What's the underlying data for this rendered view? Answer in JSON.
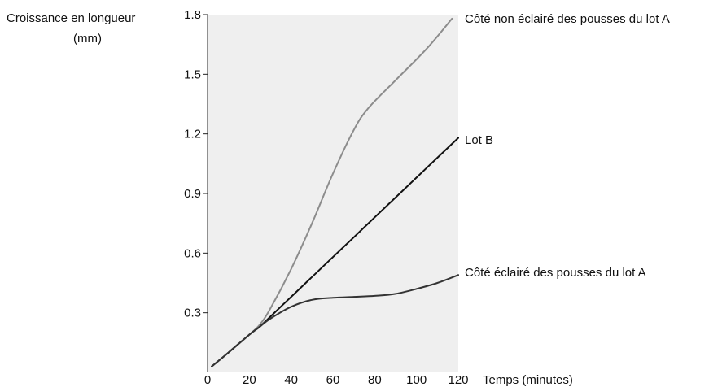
{
  "chart_data": {
    "type": "line",
    "ylabel_lines": [
      "Croissance en longueur",
      "(mm)"
    ],
    "xlabel": "Temps (minutes)",
    "xlim": [
      0,
      120
    ],
    "ylim": [
      0,
      1.8
    ],
    "x_ticks": [
      0,
      20,
      40,
      60,
      80,
      100,
      120
    ],
    "y_ticks": [
      0.3,
      0.6,
      0.9,
      1.2,
      1.5,
      1.8
    ],
    "y_tick_labels": [
      "0.3",
      "0.6",
      "0.9",
      "1.2",
      "1.5",
      "1.8"
    ],
    "x_tick_labels": [
      "0",
      "20",
      "40",
      "60",
      "80",
      "100",
      "120"
    ],
    "grid": false,
    "plot_background": "#efefef",
    "series": [
      {
        "name": "Côté non éclairé des pousses du lot A",
        "color": "#8c8c8c",
        "x": [
          2,
          10,
          20,
          25,
          30,
          40,
          50,
          60,
          70,
          77,
          90,
          105,
          117
        ],
        "y": [
          0.03,
          0.1,
          0.19,
          0.24,
          0.32,
          0.52,
          0.75,
          1.0,
          1.22,
          1.33,
          1.47,
          1.63,
          1.78
        ]
      },
      {
        "name": "Lot B",
        "color": "#111111",
        "x": [
          2,
          10,
          20,
          25,
          30,
          40,
          50,
          60,
          70,
          80,
          90,
          100,
          110,
          120
        ],
        "y": [
          0.03,
          0.1,
          0.19,
          0.23,
          0.28,
          0.38,
          0.48,
          0.58,
          0.68,
          0.78,
          0.88,
          0.98,
          1.08,
          1.18
        ]
      },
      {
        "name": "Côté éclairé des pousses du lot A",
        "color": "#333333",
        "x": [
          2,
          10,
          20,
          25,
          30,
          40,
          50,
          60,
          70,
          80,
          90,
          100,
          110,
          120
        ],
        "y": [
          0.03,
          0.1,
          0.19,
          0.23,
          0.27,
          0.33,
          0.365,
          0.375,
          0.38,
          0.385,
          0.395,
          0.42,
          0.45,
          0.49
        ]
      }
    ]
  }
}
